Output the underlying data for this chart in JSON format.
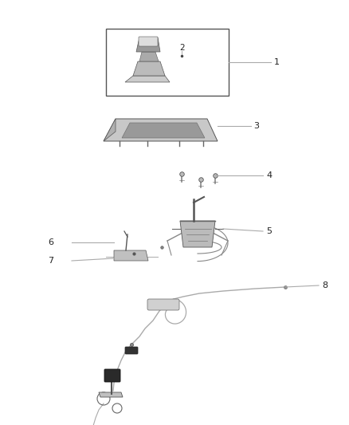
{
  "bg_color": "#ffffff",
  "line_color": "#aaaaaa",
  "dark_color": "#444444",
  "label_color": "#222222",
  "fig_width": 4.38,
  "fig_height": 5.33,
  "dpi": 100
}
